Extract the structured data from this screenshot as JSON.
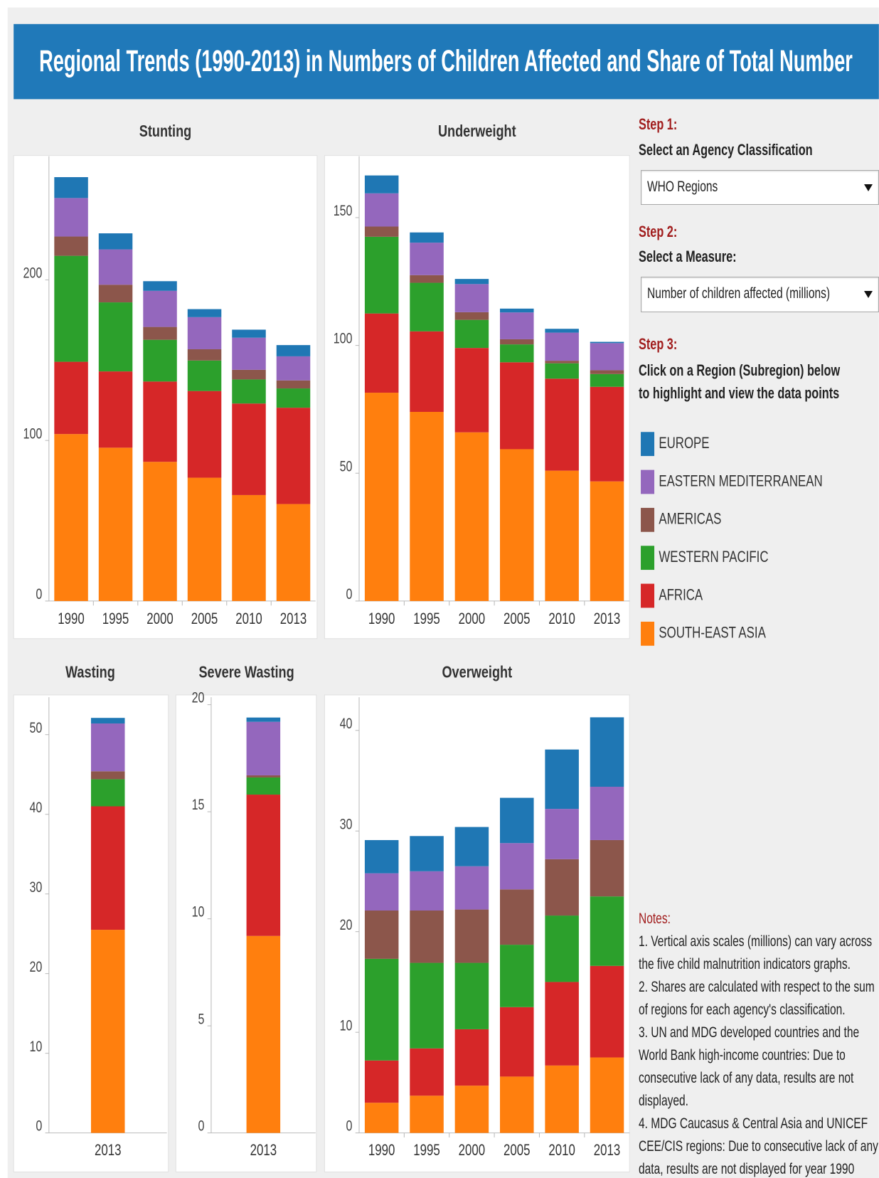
{
  "header": {
    "title": "Regional Trends (1990-2013) in Numbers of Children Affected and Share of Total Number"
  },
  "controls": {
    "step1": {
      "label": "Step 1:",
      "text": "Select an Agency Classification",
      "value": "WHO Regions"
    },
    "step2": {
      "label": "Step 2:",
      "text": "Select a Measure:",
      "value": "Number of children affected (millions)"
    },
    "step3": {
      "label": "Step 3:",
      "text": "Click on a Region (Subregion) below to highlight and view the data points"
    }
  },
  "notes": {
    "title": "Notes:",
    "items": [
      "1. Vertical axis scales (millions) can vary across the five child malnutrition indicators graphs.",
      "2. Shares are calculated with respect to the sum of regions for each agency's classification.",
      "3. UN and MDG developed countries and the World Bank high-income countries: Due to consecutive lack of any data, results are not displayed.",
      "4. MDG Caucasus & Central Asia and UNICEF CEE/CIS regions: Due to consecutive lack of any data, results are not displayed for year 1990"
    ]
  },
  "chart_data": [
    {
      "type": "stacked_bar",
      "title": "Stunting",
      "categories": [
        "1990",
        "1995",
        "2000",
        "2005",
        "2010",
        "2013"
      ],
      "ylim": [
        0,
        277
      ],
      "yticks": [
        0,
        100,
        200
      ],
      "series": [
        {
          "name": "SOUTH-EAST ASIA",
          "color": "#ff7f0e",
          "values": [
            104,
            95.5,
            86.7,
            76.8,
            66,
            60.4
          ]
        },
        {
          "name": "AFRICA",
          "color": "#d62728",
          "values": [
            45,
            47.5,
            50,
            54,
            57,
            60
          ]
        },
        {
          "name": "WESTERN PACIFIC",
          "color": "#2ca02c",
          "values": [
            66,
            43,
            26,
            19,
            15,
            12
          ]
        },
        {
          "name": "AMERICAS",
          "color": "#8c564b",
          "values": [
            12,
            11,
            8,
            7,
            6,
            5
          ]
        },
        {
          "name": "EASTERN MEDITERRANEAN",
          "color": "#9467bd",
          "values": [
            24,
            22,
            22.5,
            20,
            20,
            15
          ]
        },
        {
          "name": "EUROPE",
          "color": "#1f77b4",
          "values": [
            13,
            10,
            6,
            5,
            5,
            7
          ]
        }
      ]
    },
    {
      "type": "stacked_bar",
      "title": "Underweight",
      "categories": [
        "1990",
        "1995",
        "2000",
        "2005",
        "2010",
        "2013"
      ],
      "ylim": [
        0,
        174
      ],
      "yticks": [
        0,
        50,
        100,
        150
      ],
      "series": [
        {
          "name": "SOUTH-EAST ASIA",
          "color": "#ff7f0e",
          "values": [
            81.5,
            74,
            66,
            59.4,
            51,
            46.8
          ]
        },
        {
          "name": "AFRICA",
          "color": "#d62728",
          "values": [
            31,
            31.5,
            33,
            34,
            36,
            37
          ]
        },
        {
          "name": "WESTERN PACIFIC",
          "color": "#2ca02c",
          "values": [
            30,
            19,
            11,
            7,
            6,
            5
          ]
        },
        {
          "name": "AMERICAS",
          "color": "#8c564b",
          "values": [
            4,
            3,
            3,
            2,
            1,
            1.5
          ]
        },
        {
          "name": "EASTERN MEDITERRANEAN",
          "color": "#9467bd",
          "values": [
            13,
            12.7,
            11,
            10.5,
            11,
            10.6
          ]
        },
        {
          "name": "EUROPE",
          "color": "#1f77b4",
          "values": [
            7,
            4,
            2,
            1.5,
            1.5,
            0.5
          ]
        }
      ]
    },
    {
      "type": "stacked_bar",
      "title": "Wasting",
      "categories": [
        "2013"
      ],
      "ylim": [
        0,
        54.7
      ],
      "yticks": [
        0,
        10,
        20,
        30,
        40,
        50
      ],
      "series": [
        {
          "name": "SOUTH-EAST ASIA",
          "color": "#ff7f0e",
          "values": [
            25.5
          ]
        },
        {
          "name": "AFRICA",
          "color": "#d62728",
          "values": [
            15.5
          ]
        },
        {
          "name": "WESTERN PACIFIC",
          "color": "#2ca02c",
          "values": [
            3.4
          ]
        },
        {
          "name": "AMERICAS",
          "color": "#8c564b",
          "values": [
            1
          ]
        },
        {
          "name": "EASTERN MEDITERRANEAN",
          "color": "#9467bd",
          "values": [
            6
          ]
        },
        {
          "name": "EUROPE",
          "color": "#1f77b4",
          "values": [
            0.7
          ]
        }
      ]
    },
    {
      "type": "stacked_bar",
      "title": "Severe Wasting",
      "categories": [
        "2013"
      ],
      "ylim": [
        0,
        20.35
      ],
      "yticks": [
        0,
        5,
        10,
        15,
        20
      ],
      "series": [
        {
          "name": "SOUTH-EAST ASIA",
          "color": "#ff7f0e",
          "values": [
            9.2
          ]
        },
        {
          "name": "AFRICA",
          "color": "#d62728",
          "values": [
            6.6
          ]
        },
        {
          "name": "WESTERN PACIFIC",
          "color": "#2ca02c",
          "values": [
            0.8
          ]
        },
        {
          "name": "AMERICAS",
          "color": "#8c564b",
          "values": [
            0.1
          ]
        },
        {
          "name": "EASTERN MEDITERRANEAN",
          "color": "#9467bd",
          "values": [
            2.5
          ]
        },
        {
          "name": "EUROPE",
          "color": "#1f77b4",
          "values": [
            0.2
          ]
        }
      ]
    },
    {
      "type": "stacked_bar",
      "title": "Overweight",
      "categories": [
        "1990",
        "1995",
        "2000",
        "2005",
        "2010",
        "2013"
      ],
      "ylim": [
        0,
        43.3
      ],
      "yticks": [
        0,
        10,
        20,
        30,
        40
      ],
      "series": [
        {
          "name": "SOUTH-EAST ASIA",
          "color": "#ff7f0e",
          "values": [
            3,
            3.7,
            4.7,
            5.6,
            6.7,
            7.5
          ]
        },
        {
          "name": "AFRICA",
          "color": "#d62728",
          "values": [
            4.2,
            4.7,
            5.6,
            6.9,
            8.3,
            9.1
          ]
        },
        {
          "name": "WESTERN PACIFIC",
          "color": "#2ca02c",
          "values": [
            10.1,
            8.5,
            6.6,
            6.2,
            6.6,
            6.9
          ]
        },
        {
          "name": "AMERICAS",
          "color": "#8c564b",
          "values": [
            4.8,
            5.2,
            5.3,
            5.5,
            5.6,
            5.6
          ]
        },
        {
          "name": "EASTERN MEDITERRANEAN",
          "color": "#9467bd",
          "values": [
            3.7,
            3.9,
            4.3,
            4.6,
            5,
            5.3
          ]
        },
        {
          "name": "EUROPE",
          "color": "#1f77b4",
          "values": [
            3.3,
            3.5,
            3.9,
            4.5,
            5.9,
            6.9
          ]
        }
      ]
    }
  ]
}
